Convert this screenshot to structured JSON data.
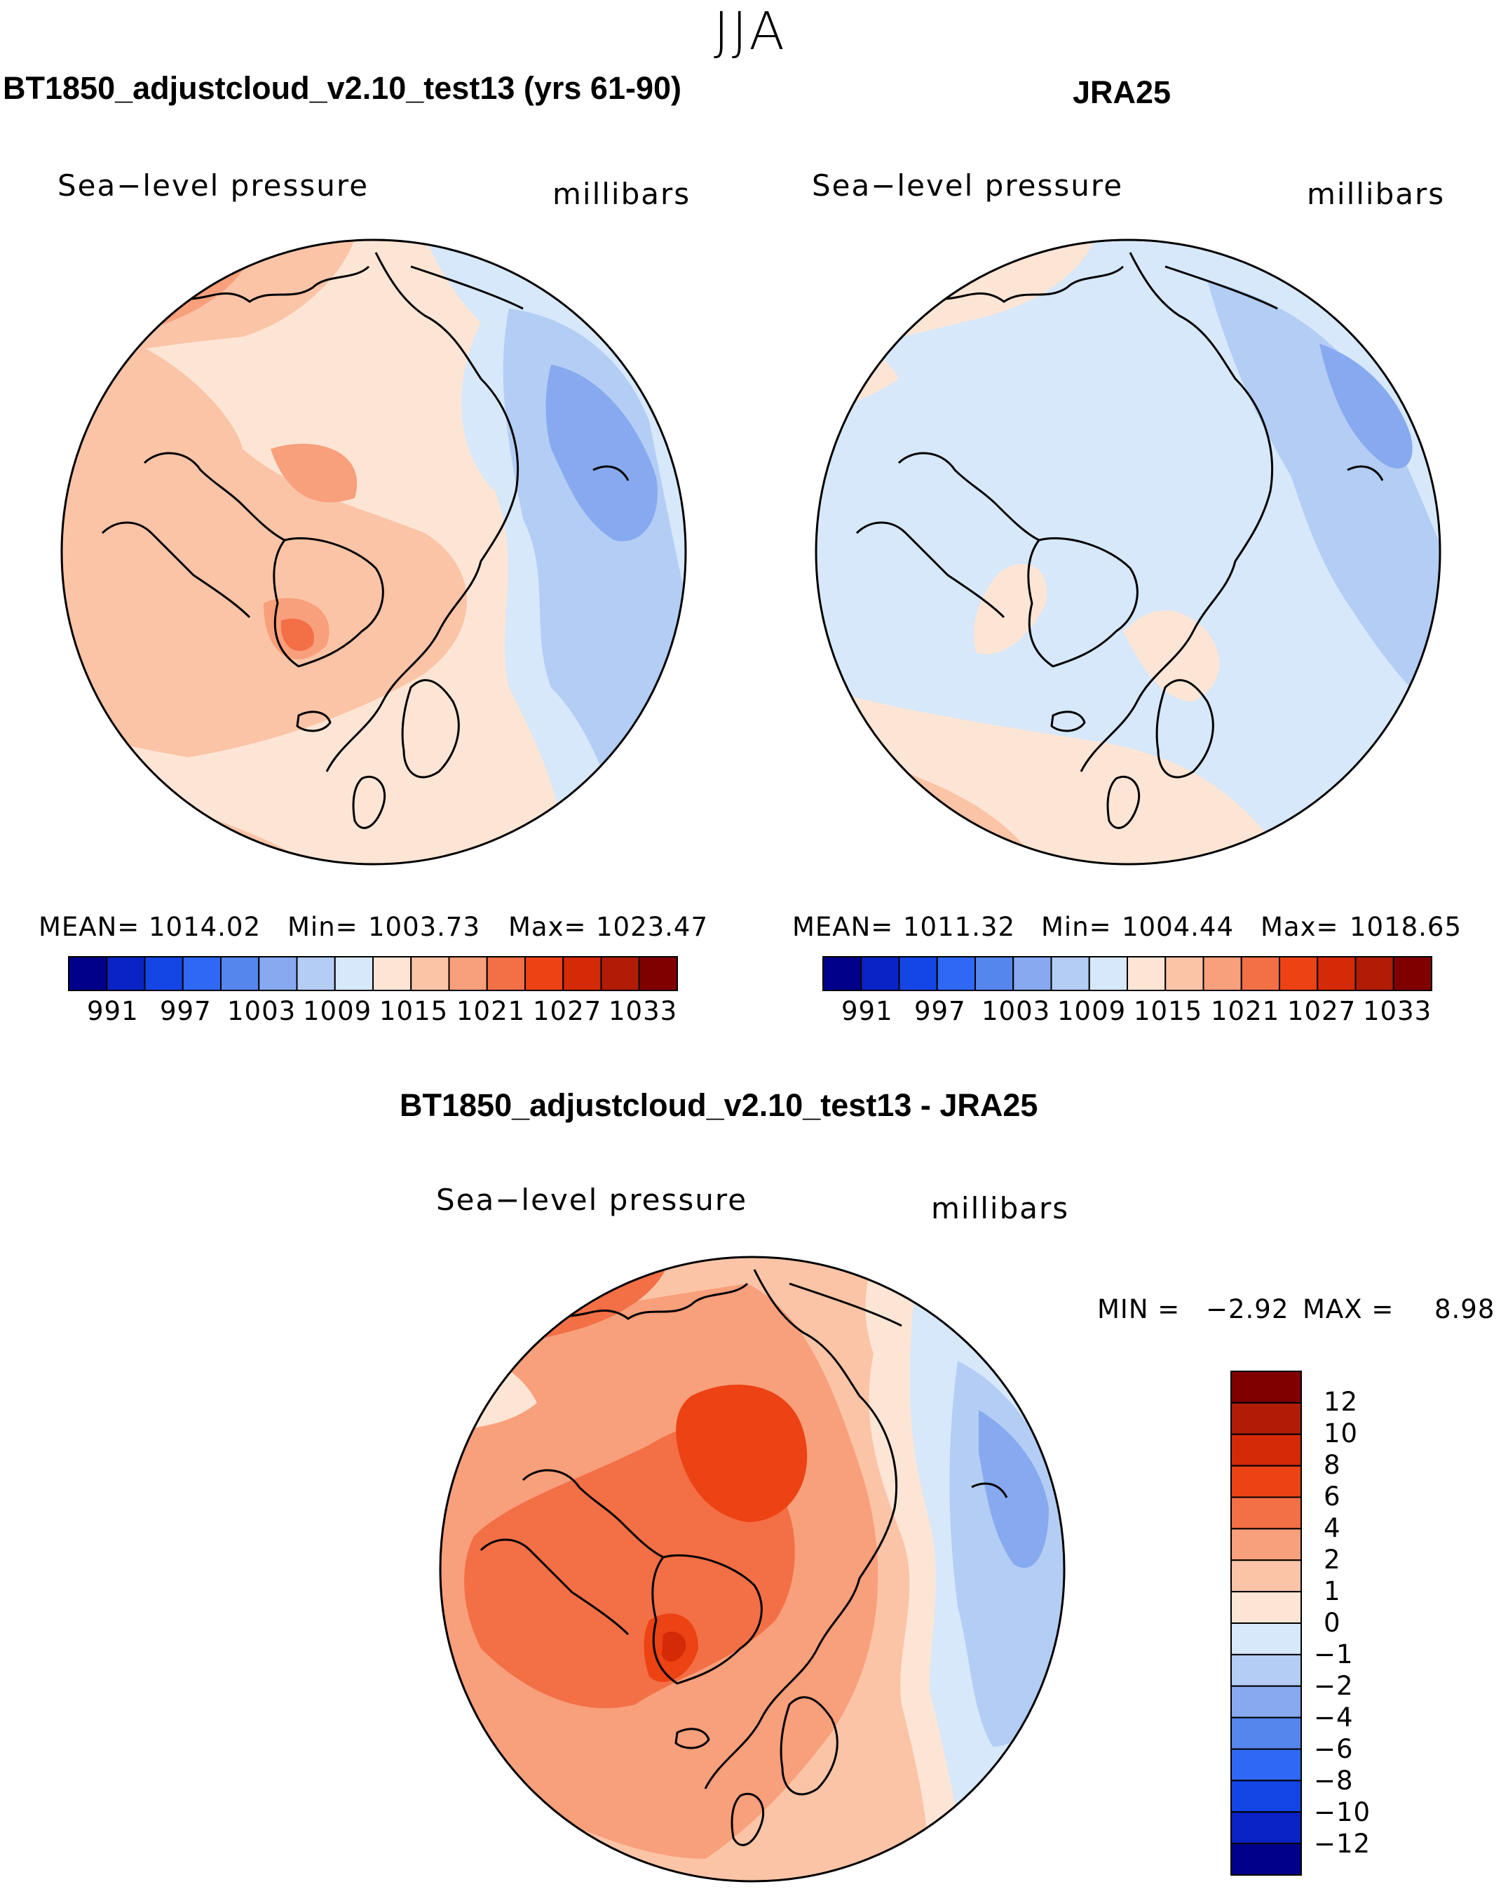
{
  "season": "JJA",
  "field_label": "Sea−level pressure",
  "units_label": "millibars",
  "panels": [
    {
      "title": "BT1850_adjustcloud_v2.10_test13 (yrs 61-90)",
      "mean_label": "MEAN=",
      "mean": "1014.02",
      "min_label": "Min=",
      "min": "1003.73",
      "max_label": "Max=",
      "max": "1023.47"
    },
    {
      "title": "JRA25",
      "mean_label": "MEAN=",
      "mean": "1011.32",
      "min_label": "Min=",
      "min": "1004.44",
      "max_label": "Max=",
      "max": "1018.65"
    },
    {
      "title": "BT1850_adjustcloud_v2.10_test13 - JRA25",
      "min_label": "MIN =",
      "min": "−2.92",
      "max_label": "MAX =",
      "max": "8.98"
    }
  ],
  "colorbar_abs": {
    "colors": [
      "#00008b",
      "#0a23c4",
      "#1446e6",
      "#2f68f5",
      "#5586ee",
      "#87a9ef",
      "#b3cdf4",
      "#d6e8fa",
      "#fde5d5",
      "#fbc4a7",
      "#f89f7b",
      "#f36f46",
      "#ec4214",
      "#d52a08",
      "#b01c05",
      "#800000"
    ],
    "labels": [
      "991",
      "997",
      "1003",
      "1009",
      "1015",
      "1021",
      "1027",
      "1033"
    ]
  },
  "colorbar_diff": {
    "colors": [
      "#800000",
      "#b01c05",
      "#d52a08",
      "#ec4214",
      "#f36f46",
      "#f89f7b",
      "#fbc4a7",
      "#fde5d5",
      "#d6e8fa",
      "#b3cdf4",
      "#87a9ef",
      "#5586ee",
      "#2f68f5",
      "#1446e6",
      "#0a23c4",
      "#00008b"
    ],
    "labels": [
      "12",
      "10",
      "8",
      "6",
      "4",
      "2",
      "1",
      "0",
      "−1",
      "−2",
      "−4",
      "−6",
      "−8",
      "−10",
      "−12"
    ]
  }
}
